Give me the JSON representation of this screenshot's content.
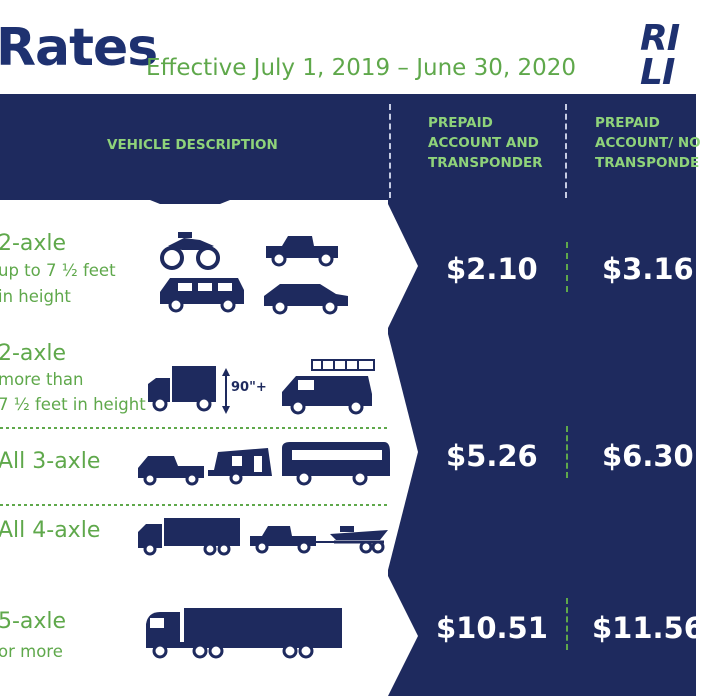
{
  "header": {
    "title": "Rates",
    "effective": "Effective July 1, 2019 – June 30, 2020",
    "logo_line1": "RI",
    "logo_line2": "LI"
  },
  "table_header": {
    "vehicle_description": "VEHICLE DESCRIPTION",
    "col1": [
      "PREPAID",
      "ACCOUNT AND",
      "TRANSPONDER"
    ],
    "col2": [
      "PREPAID",
      "ACCOUNT/ NO",
      "TRANSPONDE"
    ]
  },
  "rows": [
    {
      "axle": "2-axle",
      "sub": [
        "up to 7 ½ feet",
        "in height"
      ],
      "icons": [
        "motorcycle-icon",
        "pickup-truck-icon",
        "van-icon",
        "car-icon"
      ]
    },
    {
      "axle": "2-axle",
      "sub": [
        "more than",
        "7 ½ feet in height"
      ],
      "icons": [
        "box-truck-icon",
        "height-indicator-icon",
        "work-van-with-ladder-icon"
      ],
      "note": "90\"+"
    },
    {
      "axle": "All 3-axle",
      "icons": [
        "truck-with-trailer-icon",
        "camper-trailer-icon",
        "bus-icon"
      ]
    },
    {
      "axle": "All 4-axle",
      "icons": [
        "box-truck-trailer-icon",
        "pickup-with-boat-trailer-icon"
      ]
    },
    {
      "axle": "5-axle",
      "sub": [
        "or more"
      ],
      "icons": [
        "semi-truck-icon"
      ]
    }
  ],
  "rates": [
    {
      "col1": "$2.10",
      "col2": "$3.16"
    },
    {
      "col1": "$5.26",
      "col2": "$6.30"
    },
    {
      "col1": "$10.51",
      "col2": "$11.56"
    }
  ],
  "colors": {
    "navy": "#1e2a5e",
    "green": "#5fa84b",
    "header_green": "#8fd37a",
    "white": "#ffffff"
  }
}
